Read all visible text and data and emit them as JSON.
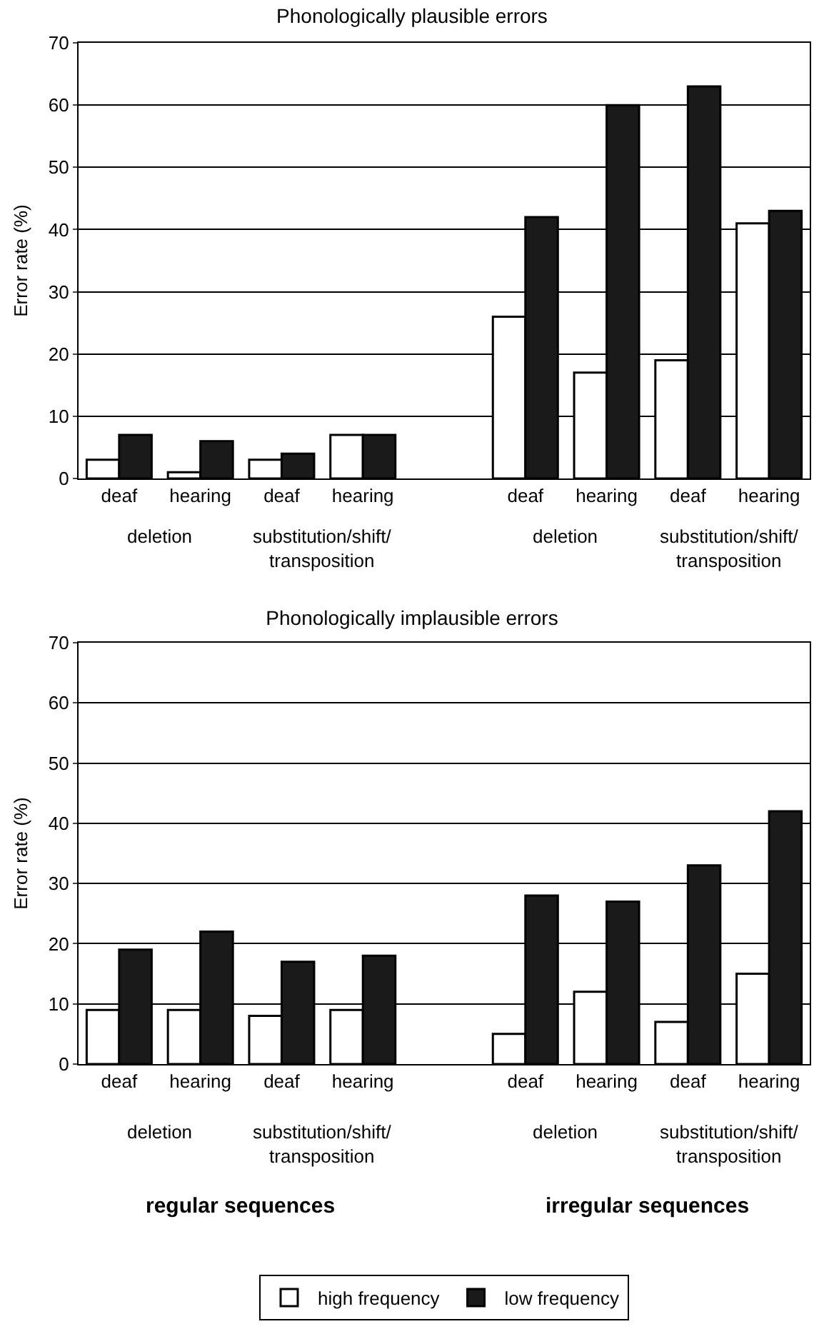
{
  "chart_data": [
    {
      "type": "bar",
      "title": "Phonologically plausible errors",
      "ylabel": "Error rate (%)",
      "categories": [
        "deaf",
        "hearing",
        "deaf",
        "hearing",
        null,
        "deaf",
        "hearing",
        "deaf",
        "hearing"
      ],
      "series": [
        {
          "color": "#ffffff",
          "values": [
            3,
            1,
            3,
            7,
            null,
            26,
            17,
            19,
            41
          ]
        },
        {
          "color": "#1a1a1a",
          "values": [
            7,
            6,
            4,
            7,
            null,
            42,
            60,
            63,
            43
          ]
        }
      ],
      "ylim": [
        0,
        70
      ],
      "yticks": [
        0,
        10,
        20,
        30,
        40,
        50,
        60,
        70
      ],
      "grid": "y",
      "legend": false,
      "annotations": [
        "deletion",
        "substitution/shift/transposition",
        "deletion",
        "substitution/shift/transposition"
      ]
    },
    {
      "type": "bar",
      "title": "Phonologically implausible errors",
      "ylabel": "Error rate (%)",
      "categories": [
        "deaf",
        "hearing",
        "deaf",
        "hearing",
        null,
        "deaf",
        "hearing",
        "deaf",
        "hearing"
      ],
      "series": [
        {
          "name": "high frequency",
          "color": "#ffffff",
          "values": [
            9,
            9,
            8,
            9,
            null,
            5,
            12,
            7,
            15
          ]
        },
        {
          "name": "low frequency",
          "color": "#1a1a1a",
          "values": [
            19,
            22,
            17,
            18,
            null,
            28,
            27,
            33,
            42
          ]
        }
      ],
      "ylim": [
        0,
        70
      ],
      "yticks": [
        0,
        10,
        20,
        30,
        40,
        50,
        60,
        70
      ],
      "grid": "y",
      "legend": "bottom",
      "annotations": [
        "deletion",
        "substitution/shift/transposition",
        "deletion",
        "substitution/shift/transposition",
        "regular sequences",
        "irregular sequences"
      ]
    }
  ]
}
